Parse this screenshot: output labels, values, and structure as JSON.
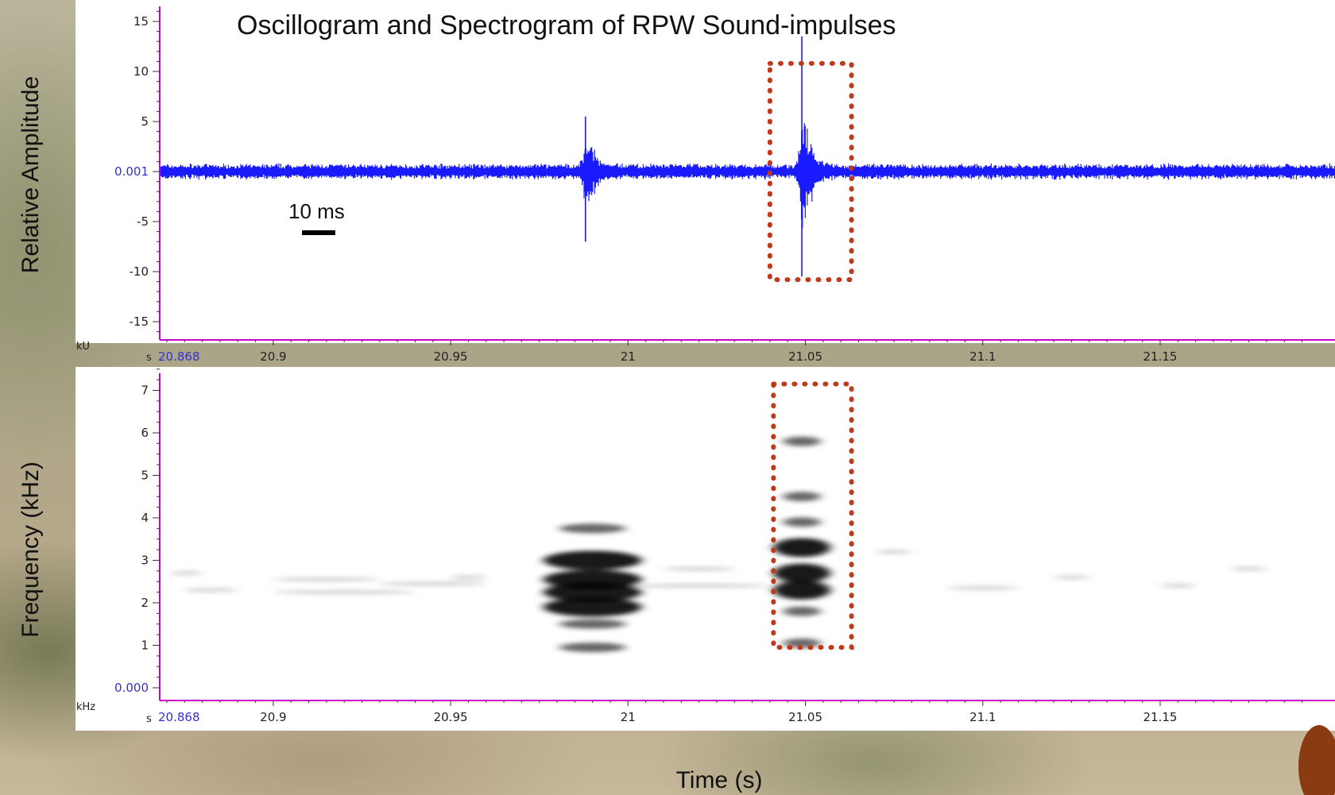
{
  "chart_data": [
    {
      "type": "line",
      "title": "Oscillogram and Spectrogram of RPW Sound-impulses",
      "ylabel": "Relative Amplitude",
      "y_unit": "kU",
      "x_unit": "s",
      "xlim": [
        20.868,
        21.19
      ],
      "ylim": [
        -16,
        16
      ],
      "x_ticks": [
        "20.868",
        "20.9",
        "20.95",
        "21",
        "21.05",
        "21.1",
        "21.15"
      ],
      "x_tick_values": [
        20.868,
        20.9,
        20.95,
        21,
        21.05,
        21.1,
        21.15
      ],
      "y_ticks": [
        "15",
        "10",
        "5",
        "0.001",
        "-5",
        "-10",
        "-15"
      ],
      "y_tick_values": [
        15,
        10,
        5,
        0,
        -5,
        -10,
        -15
      ],
      "baseline": 0.001,
      "scale_bar_label": "10 ms",
      "scale_bar_value_ms": 10,
      "highlight": {
        "x": [
          21.04,
          21.063
        ],
        "y": [
          -10.8,
          10.8
        ]
      },
      "impulses": [
        {
          "t": 20.988,
          "max": 5.5,
          "min": -7.0
        },
        {
          "t": 21.049,
          "max": 13.5,
          "min": -10.5
        }
      ],
      "line_color": "#1a1aff",
      "baseline_color": "#ff4444"
    },
    {
      "type": "heatmap",
      "ylabel": "Frequency (kHz)",
      "y_unit": "kHz",
      "x_unit": "s",
      "xlabel": "Time (s)",
      "xlim": [
        20.868,
        21.19
      ],
      "ylim": [
        0,
        7.8
      ],
      "x_ticks": [
        "20.868",
        "20.9",
        "20.95",
        "21",
        "21.05",
        "21.1",
        "21.15"
      ],
      "x_tick_values": [
        20.868,
        20.9,
        20.95,
        21,
        21.05,
        21.1,
        21.15
      ],
      "y_ticks": [
        "7",
        "6",
        "5",
        "4",
        "3",
        "2",
        "1",
        "0.000"
      ],
      "y_tick_values": [
        7,
        6,
        5,
        4,
        3,
        2,
        1,
        0
      ],
      "highlight": {
        "x": [
          21.041,
          21.063
        ],
        "y": [
          0.95,
          7.15
        ]
      },
      "events": [
        {
          "t": 20.99,
          "freqs_khz": [
            0.95,
            1.5,
            1.9,
            2.25,
            2.55,
            3.0,
            3.75
          ]
        },
        {
          "t": 21.049,
          "freqs_khz": [
            1.05,
            1.8,
            2.3,
            2.7,
            3.3,
            3.9,
            4.5,
            5.8
          ]
        }
      ],
      "color_map": "grayscale"
    }
  ],
  "colors": {
    "axis": "#cc00cc",
    "highlight": "#c0391b"
  }
}
